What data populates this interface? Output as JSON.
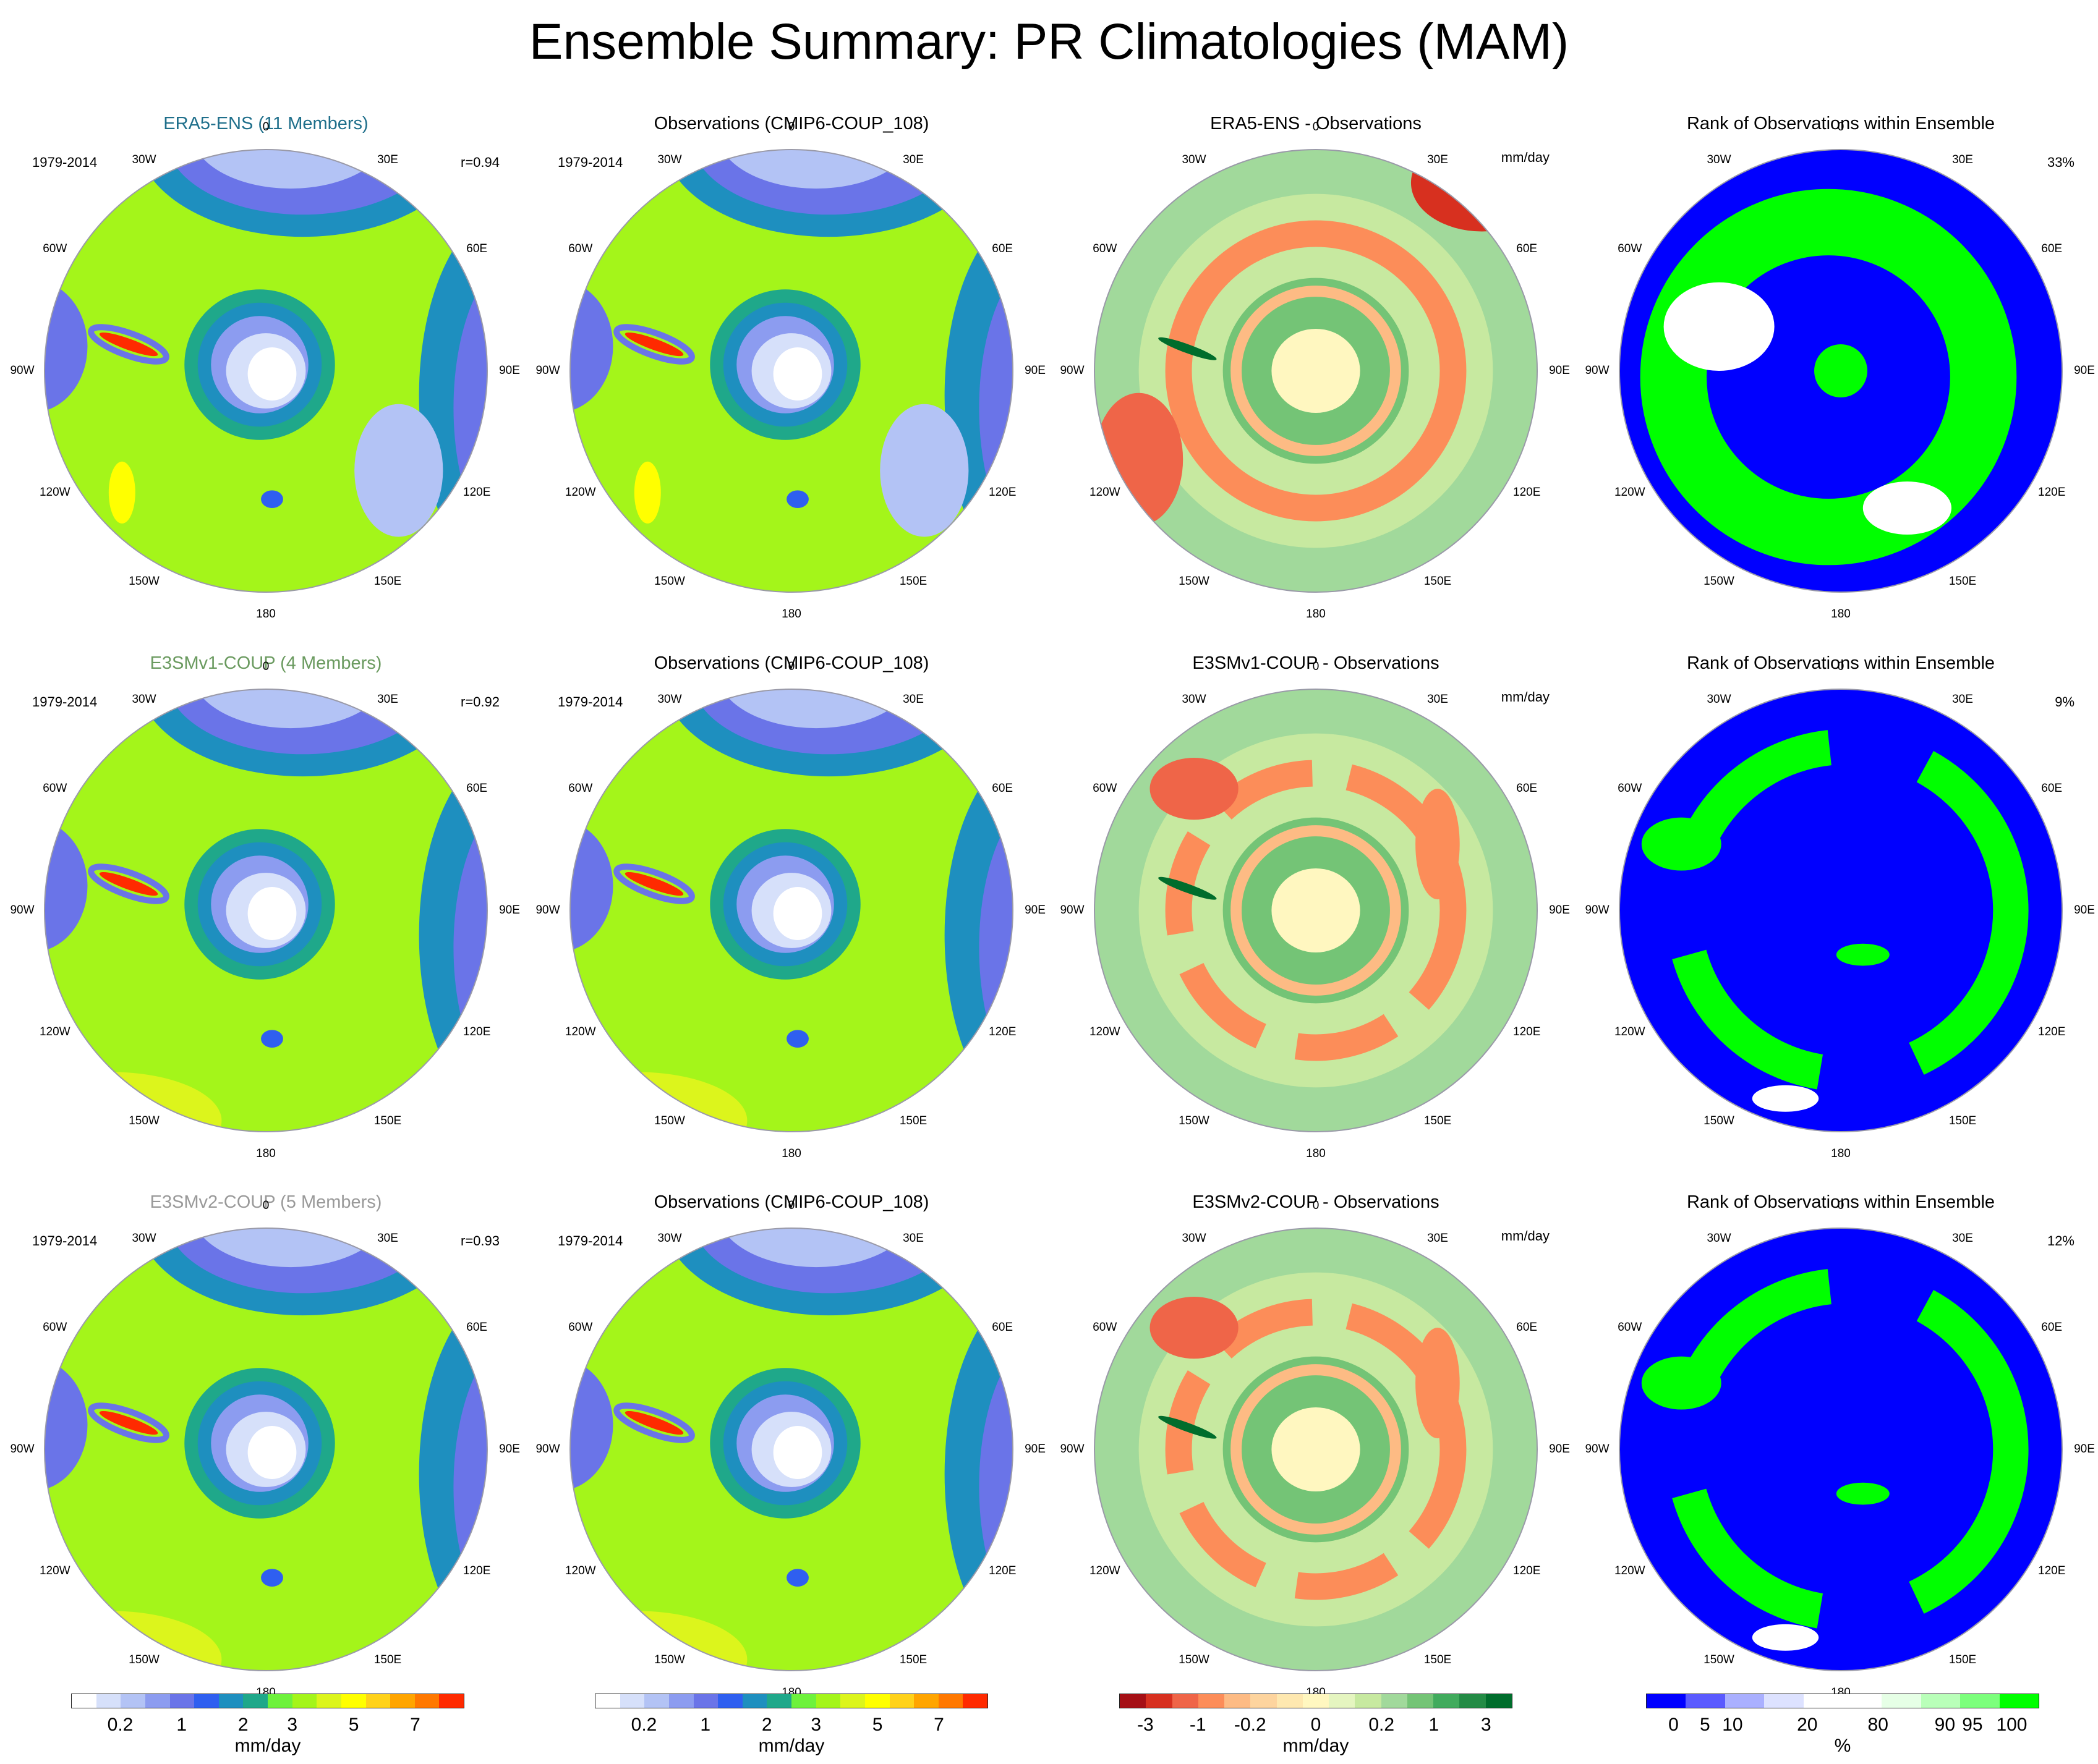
{
  "title": "Ensemble Summary: PR Climatologies (MAM)",
  "lon_labels": [
    "0",
    "30E",
    "60E",
    "90E",
    "120E",
    "150E",
    "180",
    "150W",
    "120W",
    "90W",
    "60W",
    "30W"
  ],
  "rows": [
    {
      "label": "ERA5-ENS (11 Members)",
      "label_color": "#1f6f8b",
      "period": "1979-2014",
      "corr": "r=0.94",
      "obs_title": "Observations (CMIP6-COUP_108)",
      "obs_period": "1979-2014",
      "diff_title": "ERA5-ENS - Observations",
      "diff_unit": "mm/day",
      "rank_title": "Rank of Observations within Ensemble",
      "rank_pct": "33%"
    },
    {
      "label": "E3SMv1-COUP (4 Members)",
      "label_color": "#6a9a5f",
      "period": "1979-2014",
      "corr": "r=0.92",
      "obs_title": "Observations (CMIP6-COUP_108)",
      "obs_period": "1979-2014",
      "diff_title": "E3SMv1-COUP - Observations",
      "diff_unit": "mm/day",
      "rank_title": "Rank of Observations within Ensemble",
      "rank_pct": "9%"
    },
    {
      "label": "E3SMv2-COUP (5 Members)",
      "label_color": "#999999",
      "period": "1979-2014",
      "corr": "r=0.93",
      "obs_title": "Observations (CMIP6-COUP_108)",
      "obs_period": "1979-2014",
      "diff_title": "E3SMv2-COUP - Observations",
      "diff_unit": "mm/day",
      "rank_title": "Rank of Observations within Ensemble",
      "rank_pct": "12%"
    }
  ],
  "colorbars": {
    "precip": {
      "colors": [
        "#ffffff",
        "#d6e0fa",
        "#b3c3f5",
        "#8c9cf0",
        "#6a74e8",
        "#2f5ff0",
        "#1e8fbf",
        "#1fa88a",
        "#6ef23c",
        "#a4f51a",
        "#dcf51c",
        "#ffff00",
        "#ffd21a",
        "#ffa500",
        "#ff7800",
        "#ff2a00"
      ],
      "ticks": [
        "0.2",
        "1",
        "2",
        "3",
        "5",
        "7"
      ],
      "tick_pos": [
        0.125,
        0.281,
        0.4375,
        0.5625,
        0.71875,
        0.875
      ],
      "unit": "mm/day"
    },
    "diff": {
      "colors": [
        "#a50f15",
        "#d7301f",
        "#ef6548",
        "#fc8d59",
        "#fdbb84",
        "#fdd49e",
        "#fee8b0",
        "#fff7c0",
        "#e5f5c0",
        "#c7e9a0",
        "#a1d99b",
        "#74c476",
        "#41ab5d",
        "#238b45",
        "#006d2c"
      ],
      "ticks": [
        "-3",
        "-1",
        "-0.2",
        "0",
        "0.2",
        "1",
        "3"
      ],
      "tick_pos": [
        0.0667,
        0.2,
        0.333,
        0.5,
        0.667,
        0.8,
        0.933
      ],
      "unit": "mm/day"
    },
    "rank": {
      "colors": [
        "#0000ff",
        "#5a5aff",
        "#aab0ff",
        "#dde2ff",
        "#ffffff",
        "#ffffff",
        "#e6ffe6",
        "#b9ffb9",
        "#7cff7c",
        "#00ff00"
      ],
      "ticks": [
        "0",
        "5",
        "10",
        "20",
        "80",
        "90",
        "95",
        "100"
      ],
      "tick_pos": [
        0.07,
        0.15,
        0.22,
        0.41,
        0.59,
        0.76,
        0.83,
        0.93
      ],
      "unit": "%"
    }
  }
}
